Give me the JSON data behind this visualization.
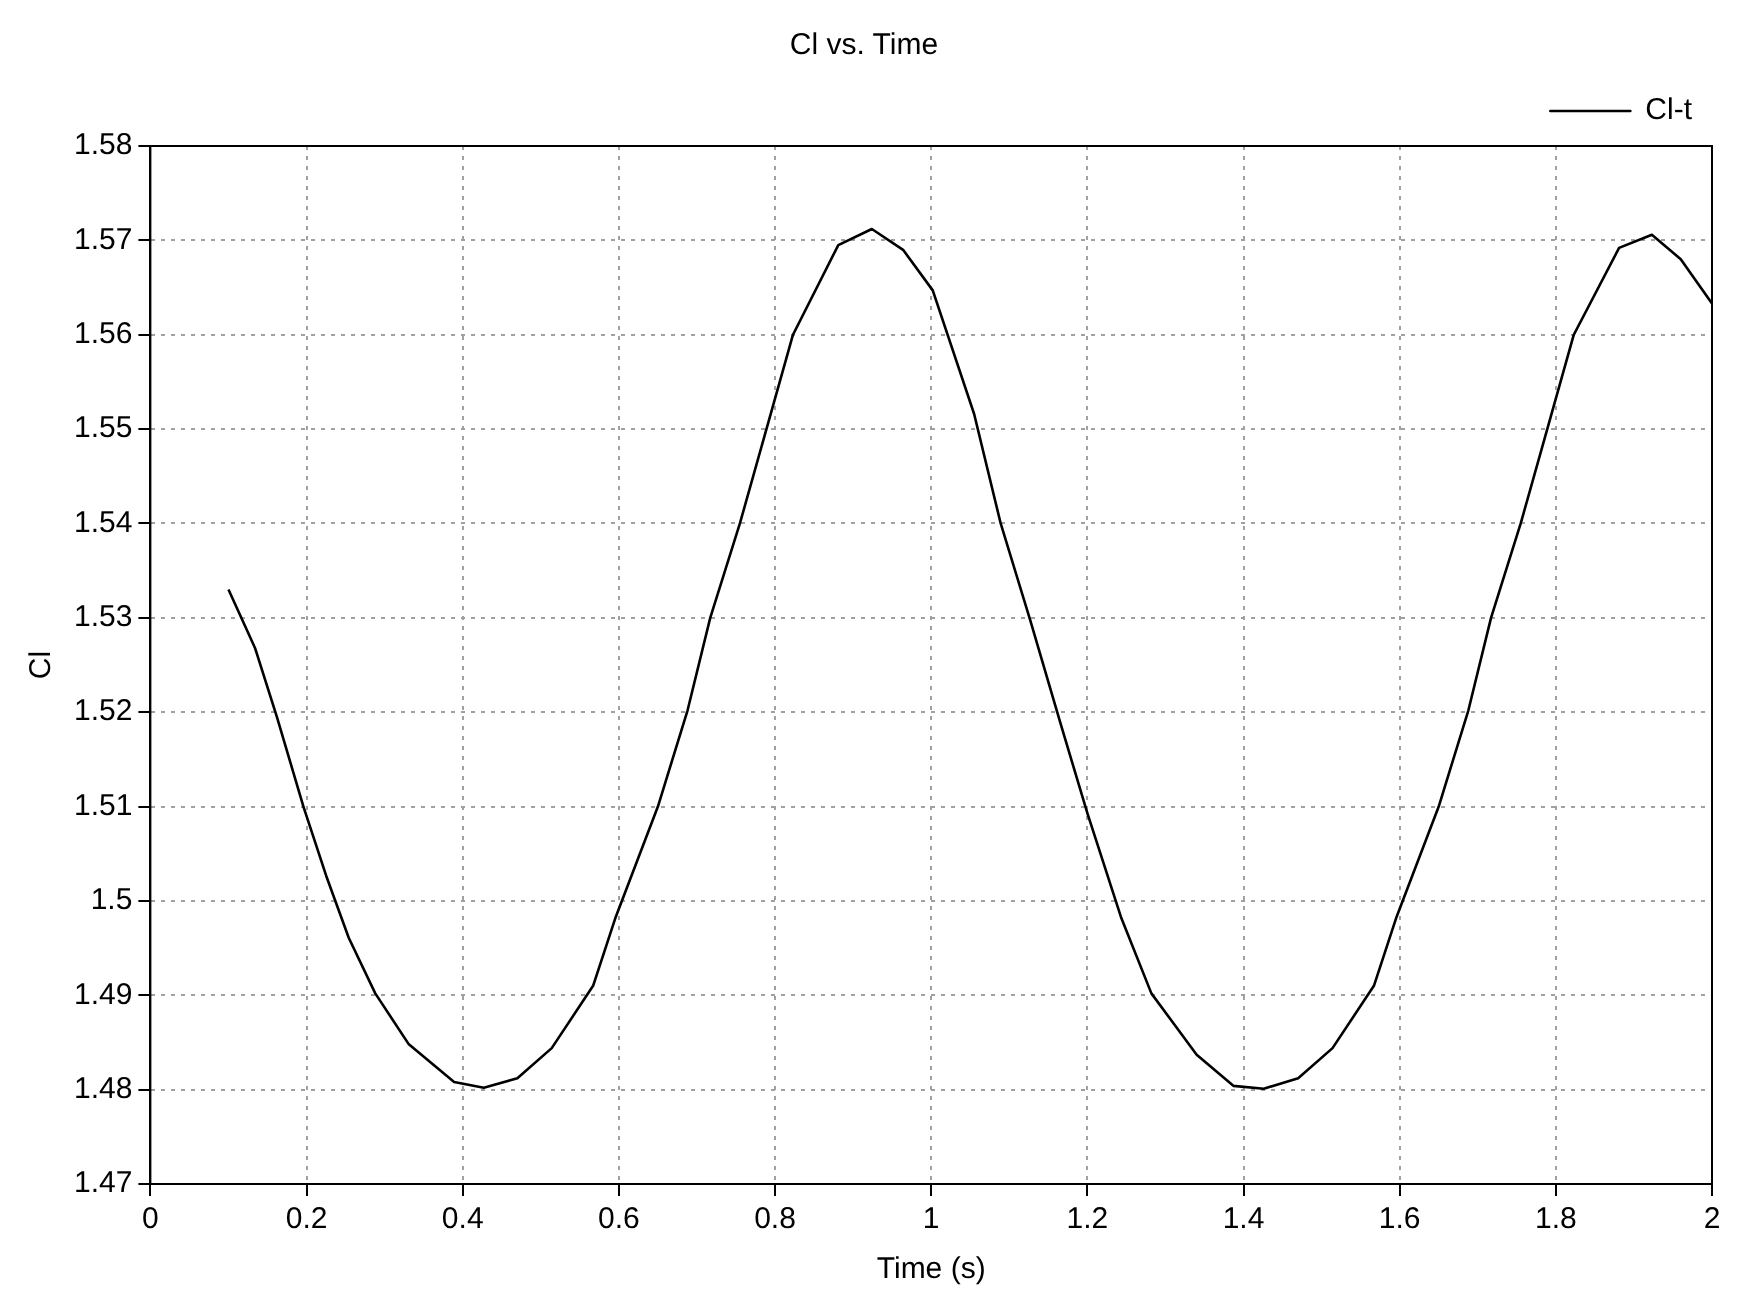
{
  "chart_data": {
    "type": "line",
    "title": "Cl vs. Time",
    "xlabel": "Time (s)",
    "ylabel": "Cl",
    "x": [
      0.1,
      0.134,
      0.162,
      0.196,
      0.225,
      0.254,
      0.288,
      0.331,
      0.389,
      0.427,
      0.47,
      0.514,
      0.567,
      0.596,
      0.65,
      0.688,
      0.717,
      0.755,
      0.789,
      0.823,
      0.881,
      0.924,
      0.964,
      1.002,
      1.055,
      1.089,
      1.127,
      1.166,
      1.2,
      1.243,
      1.282,
      1.34,
      1.387,
      1.426,
      1.47,
      1.514,
      1.567,
      1.596,
      1.65,
      1.688,
      1.717,
      1.755,
      1.789,
      1.823,
      1.881,
      1.923,
      1.96,
      2.0
    ],
    "series": [
      {
        "name": "Cl-t",
        "color": "#000000",
        "values": [
          1.533,
          1.5268,
          1.5195,
          1.51,
          1.5027,
          1.4961,
          1.4902,
          1.4848,
          1.4808,
          1.4802,
          1.4812,
          1.4844,
          1.491,
          1.4983,
          1.51,
          1.5202,
          1.53,
          1.54,
          1.55,
          1.56,
          1.5695,
          1.5712,
          1.569,
          1.5647,
          1.5516,
          1.54,
          1.5297,
          1.5187,
          1.5093,
          1.4983,
          1.4902,
          1.4837,
          1.4804,
          1.4801,
          1.4812,
          1.4844,
          1.491,
          1.4983,
          1.51,
          1.5202,
          1.53,
          1.54,
          1.55,
          1.56,
          1.5692,
          1.5706,
          1.568,
          1.5633
        ]
      }
    ],
    "xlim": [
      0,
      2
    ],
    "xticks": [
      0,
      0.2,
      0.4,
      0.6,
      0.8,
      1,
      1.2,
      1.4,
      1.6,
      1.8,
      2
    ],
    "ylim": [
      1.47,
      1.58
    ],
    "yticks": [
      1.47,
      1.48,
      1.49,
      1.5,
      1.51,
      1.52,
      1.53,
      1.54,
      1.55,
      1.56,
      1.57,
      1.58
    ],
    "grid": true,
    "legend": "top right",
    "marker": "none",
    "line_style": "solid"
  }
}
